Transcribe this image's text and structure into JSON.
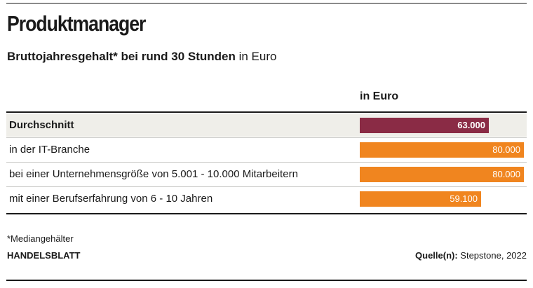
{
  "header": {
    "title": "Produktmanager",
    "subtitle_bold": "Bruttojahresgehalt* bei rund 30 Stunden",
    "subtitle_rest": " in Euro"
  },
  "chart_data": {
    "type": "bar",
    "orientation": "horizontal",
    "column_header": "in Euro",
    "categories": [
      "Durchschnitt",
      "in der IT-Branche",
      "bei einer Unternehmensgröße von 5.001 - 10.000 Mitarbeitern",
      "mit einer Berufserfahrung von 6 - 10 Jahren"
    ],
    "values": [
      63000,
      80000,
      80000,
      59100
    ],
    "value_labels": [
      "63.000",
      "80.000",
      "80.000",
      "59.100"
    ],
    "xlim": [
      0,
      80000
    ],
    "bar_colors": [
      "#8a2b45",
      "#f0851f",
      "#f0851f",
      "#f0851f"
    ],
    "highlight_row": 0,
    "grid": false
  },
  "footer": {
    "footnote": "*Mediangehälter",
    "brand": "HANDELSBLATT",
    "source_label": "Quelle(n):",
    "source_text": " Stepstone, 2022"
  }
}
